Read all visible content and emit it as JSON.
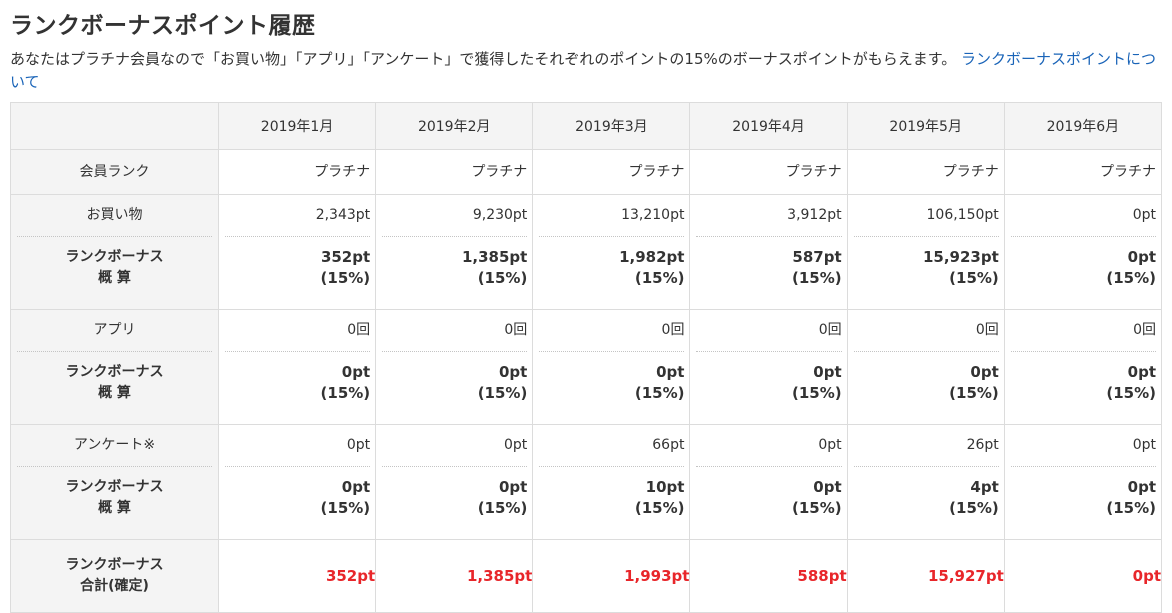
{
  "page": {
    "title": "ランクボーナスポイント履歴",
    "description": "あなたはプラチナ会員なので「お買い物」「アプリ」「アンケート」で獲得したそれぞれのポイントの15%のボーナスポイントがもらえます。",
    "link_text": "ランクボーナスポイントについて"
  },
  "table": {
    "months": [
      "2019年1月",
      "2019年2月",
      "2019年3月",
      "2019年4月",
      "2019年5月",
      "2019年6月"
    ],
    "rank_label": "会員ランク",
    "ranks": [
      "プラチナ",
      "プラチナ",
      "プラチナ",
      "プラチナ",
      "プラチナ",
      "プラチナ"
    ],
    "bonus_label_1": "ランクボーナス",
    "bonus_label_2": "概 算",
    "rate": "(15%)",
    "sections": [
      {
        "label": "お買い物",
        "values": [
          "2,343pt",
          "9,230pt",
          "13,210pt",
          "3,912pt",
          "106,150pt",
          "0pt"
        ],
        "bonus": [
          "352pt",
          "1,385pt",
          "1,982pt",
          "587pt",
          "15,923pt",
          "0pt"
        ]
      },
      {
        "label": "アプリ",
        "values": [
          "0回",
          "0回",
          "0回",
          "0回",
          "0回",
          "0回"
        ],
        "bonus": [
          "0pt",
          "0pt",
          "0pt",
          "0pt",
          "0pt",
          "0pt"
        ]
      },
      {
        "label": "アンケート※",
        "values": [
          "0pt",
          "0pt",
          "66pt",
          "0pt",
          "26pt",
          "0pt"
        ],
        "bonus": [
          "0pt",
          "0pt",
          "10pt",
          "0pt",
          "4pt",
          "0pt"
        ]
      }
    ],
    "total_label_1": "ランクボーナス",
    "total_label_2": "合計(確定)",
    "totals": [
      "352pt",
      "1,385pt",
      "1,993pt",
      "588pt",
      "15,927pt",
      "0pt"
    ]
  },
  "colors": {
    "link": "#1a64b8",
    "total": "#e8262a",
    "header_bg": "#f4f4f4",
    "border": "#dcdcdc"
  }
}
